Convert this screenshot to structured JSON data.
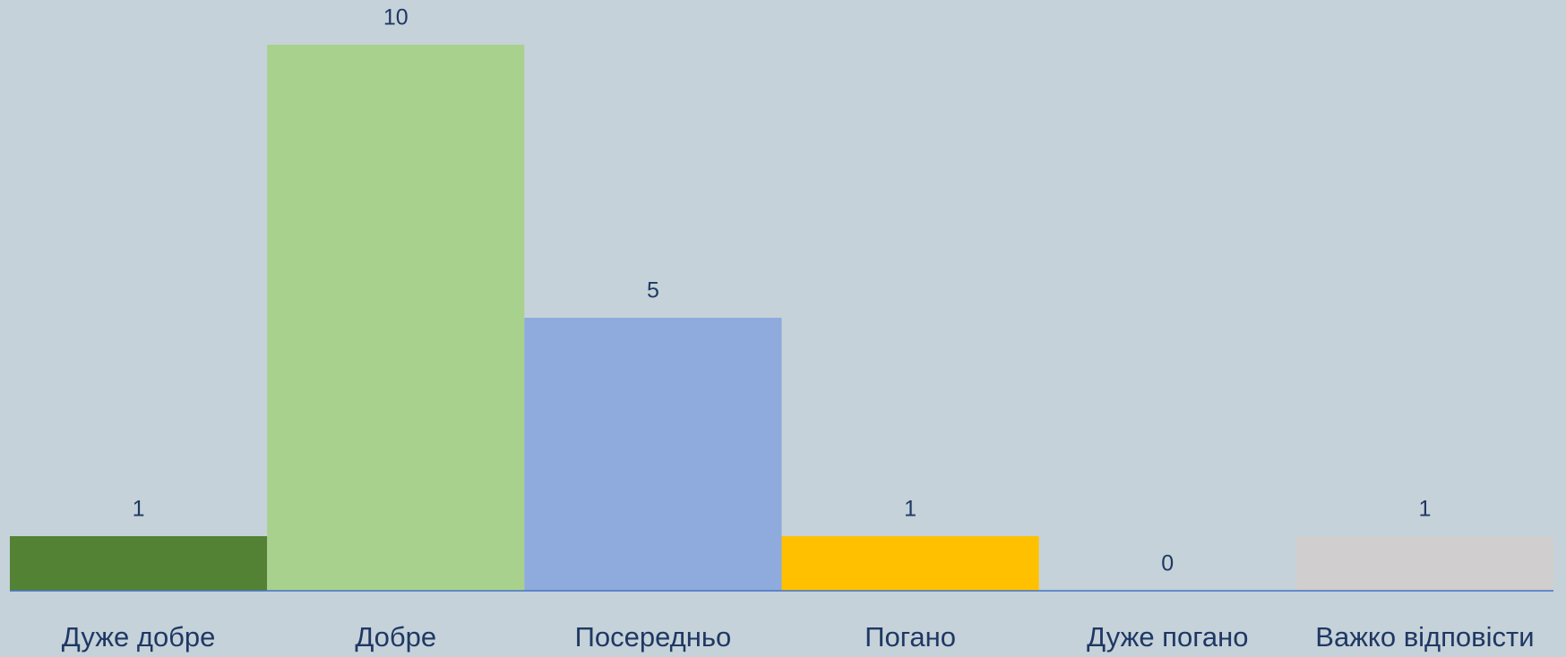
{
  "chart_data": {
    "type": "bar",
    "categories": [
      "Дуже добре",
      "Добре",
      "Посередньо",
      "Погано",
      "Дуже погано",
      "Важко відповісти"
    ],
    "values": [
      1,
      10,
      5,
      1,
      0,
      1
    ],
    "colors": [
      "#548235",
      "#a9d18e",
      "#8faadc",
      "#ffc000",
      null,
      "#d0cece"
    ]
  }
}
